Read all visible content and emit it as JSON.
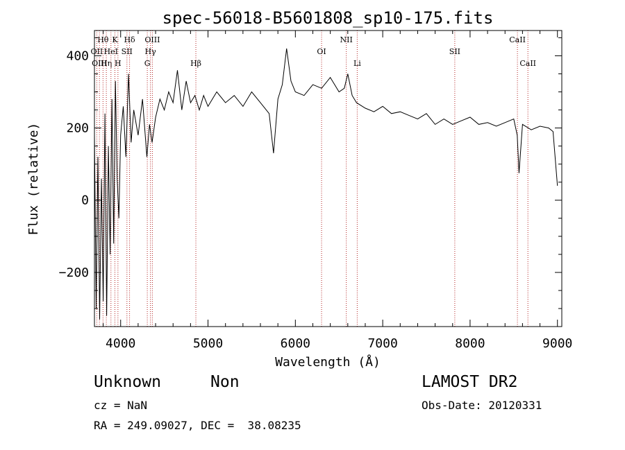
{
  "chart_data": {
    "type": "line",
    "title": "spec-56018-B5601808_sp10-175.fits",
    "xlabel": "Wavelength (Å)",
    "ylabel": "Flux (relative)",
    "xlim": [
      3700,
      9050
    ],
    "ylim": [
      -350,
      470
    ],
    "xticks": [
      4000,
      5000,
      6000,
      7000,
      8000,
      9000
    ],
    "yticks": [
      -200,
      0,
      200,
      400
    ],
    "grid": false,
    "line_color": "#000000",
    "marker_color": "#b22222",
    "series": [
      {
        "x": [
          3700,
          3720,
          3740,
          3760,
          3780,
          3800,
          3820,
          3840,
          3860,
          3880,
          3900,
          3920,
          3940,
          3960,
          3980,
          4000,
          4030,
          4060,
          4090,
          4120,
          4150,
          4200,
          4250,
          4300,
          4330,
          4360,
          4400,
          4450,
          4500,
          4550,
          4600,
          4650,
          4700,
          4750,
          4800,
          4850,
          4900,
          4950,
          5000,
          5100,
          5200,
          5300,
          5400,
          5500,
          5600,
          5700,
          5750,
          5800,
          5850,
          5900,
          5950,
          6000,
          6100,
          6200,
          6300,
          6400,
          6500,
          6560,
          6600,
          6650,
          6700,
          6800,
          6900,
          7000,
          7100,
          7200,
          7300,
          7400,
          7500,
          7600,
          7700,
          7800,
          7900,
          8000,
          8100,
          8200,
          8300,
          8400,
          8500,
          8540,
          8560,
          8600,
          8700,
          8800,
          8900,
          8950,
          9000
        ],
        "y": [
          180,
          -300,
          120,
          -330,
          60,
          -280,
          240,
          -320,
          150,
          -150,
          280,
          -120,
          330,
          60,
          -50,
          180,
          260,
          120,
          350,
          160,
          250,
          180,
          280,
          120,
          210,
          160,
          230,
          280,
          250,
          300,
          270,
          360,
          250,
          330,
          270,
          290,
          250,
          290,
          260,
          300,
          270,
          290,
          260,
          300,
          270,
          240,
          130,
          280,
          320,
          420,
          330,
          300,
          290,
          320,
          310,
          340,
          300,
          310,
          350,
          290,
          270,
          255,
          245,
          260,
          240,
          245,
          235,
          225,
          240,
          210,
          225,
          210,
          220,
          230,
          210,
          215,
          205,
          215,
          225,
          180,
          75,
          210,
          195,
          205,
          200,
          190,
          40
        ]
      }
    ],
    "lines": [
      {
        "label": "Hθ",
        "x": 3798,
        "row": 1
      },
      {
        "label": "Hη",
        "x": 3836,
        "row": 3
      },
      {
        "label": "K",
        "x": 3934,
        "row": 1
      },
      {
        "label": "H",
        "x": 3969,
        "row": 3
      },
      {
        "label": "Hδ",
        "x": 4102,
        "row": 1
      },
      {
        "label": "Hγ",
        "x": 4341,
        "row": 2
      },
      {
        "label": "G",
        "x": 4305,
        "row": 3
      },
      {
        "label": "Hβ",
        "x": 4861,
        "row": 3
      },
      {
        "label": "OI",
        "x": 6300,
        "row": 2
      },
      {
        "label": "NII",
        "x": 6583,
        "row": 1
      },
      {
        "label": "Li",
        "x": 6708,
        "row": 3
      },
      {
        "label": "SII",
        "x": 7825,
        "row": 2
      },
      {
        "label": "CaII",
        "x": 8542,
        "row": 1
      },
      {
        "label": "CaII",
        "x": 8662,
        "row": 3
      },
      {
        "label": "OII",
        "x": 3727,
        "row": 2
      },
      {
        "label": "OIII",
        "x": 3757,
        "row": 3
      },
      {
        "label": "HeI",
        "x": 3889,
        "row": 2
      },
      {
        "label": "SII",
        "x": 4072,
        "row": 2
      },
      {
        "label": "OIII",
        "x": 4363,
        "row": 1
      }
    ]
  },
  "info": {
    "object_class": "Unknown",
    "subclass": "Non",
    "survey": "LAMOST DR2",
    "cz": "cz = NaN",
    "obs_date": "Obs-Date: 20120331",
    "coords": "RA = 249.09027, DEC =  38.08235"
  }
}
